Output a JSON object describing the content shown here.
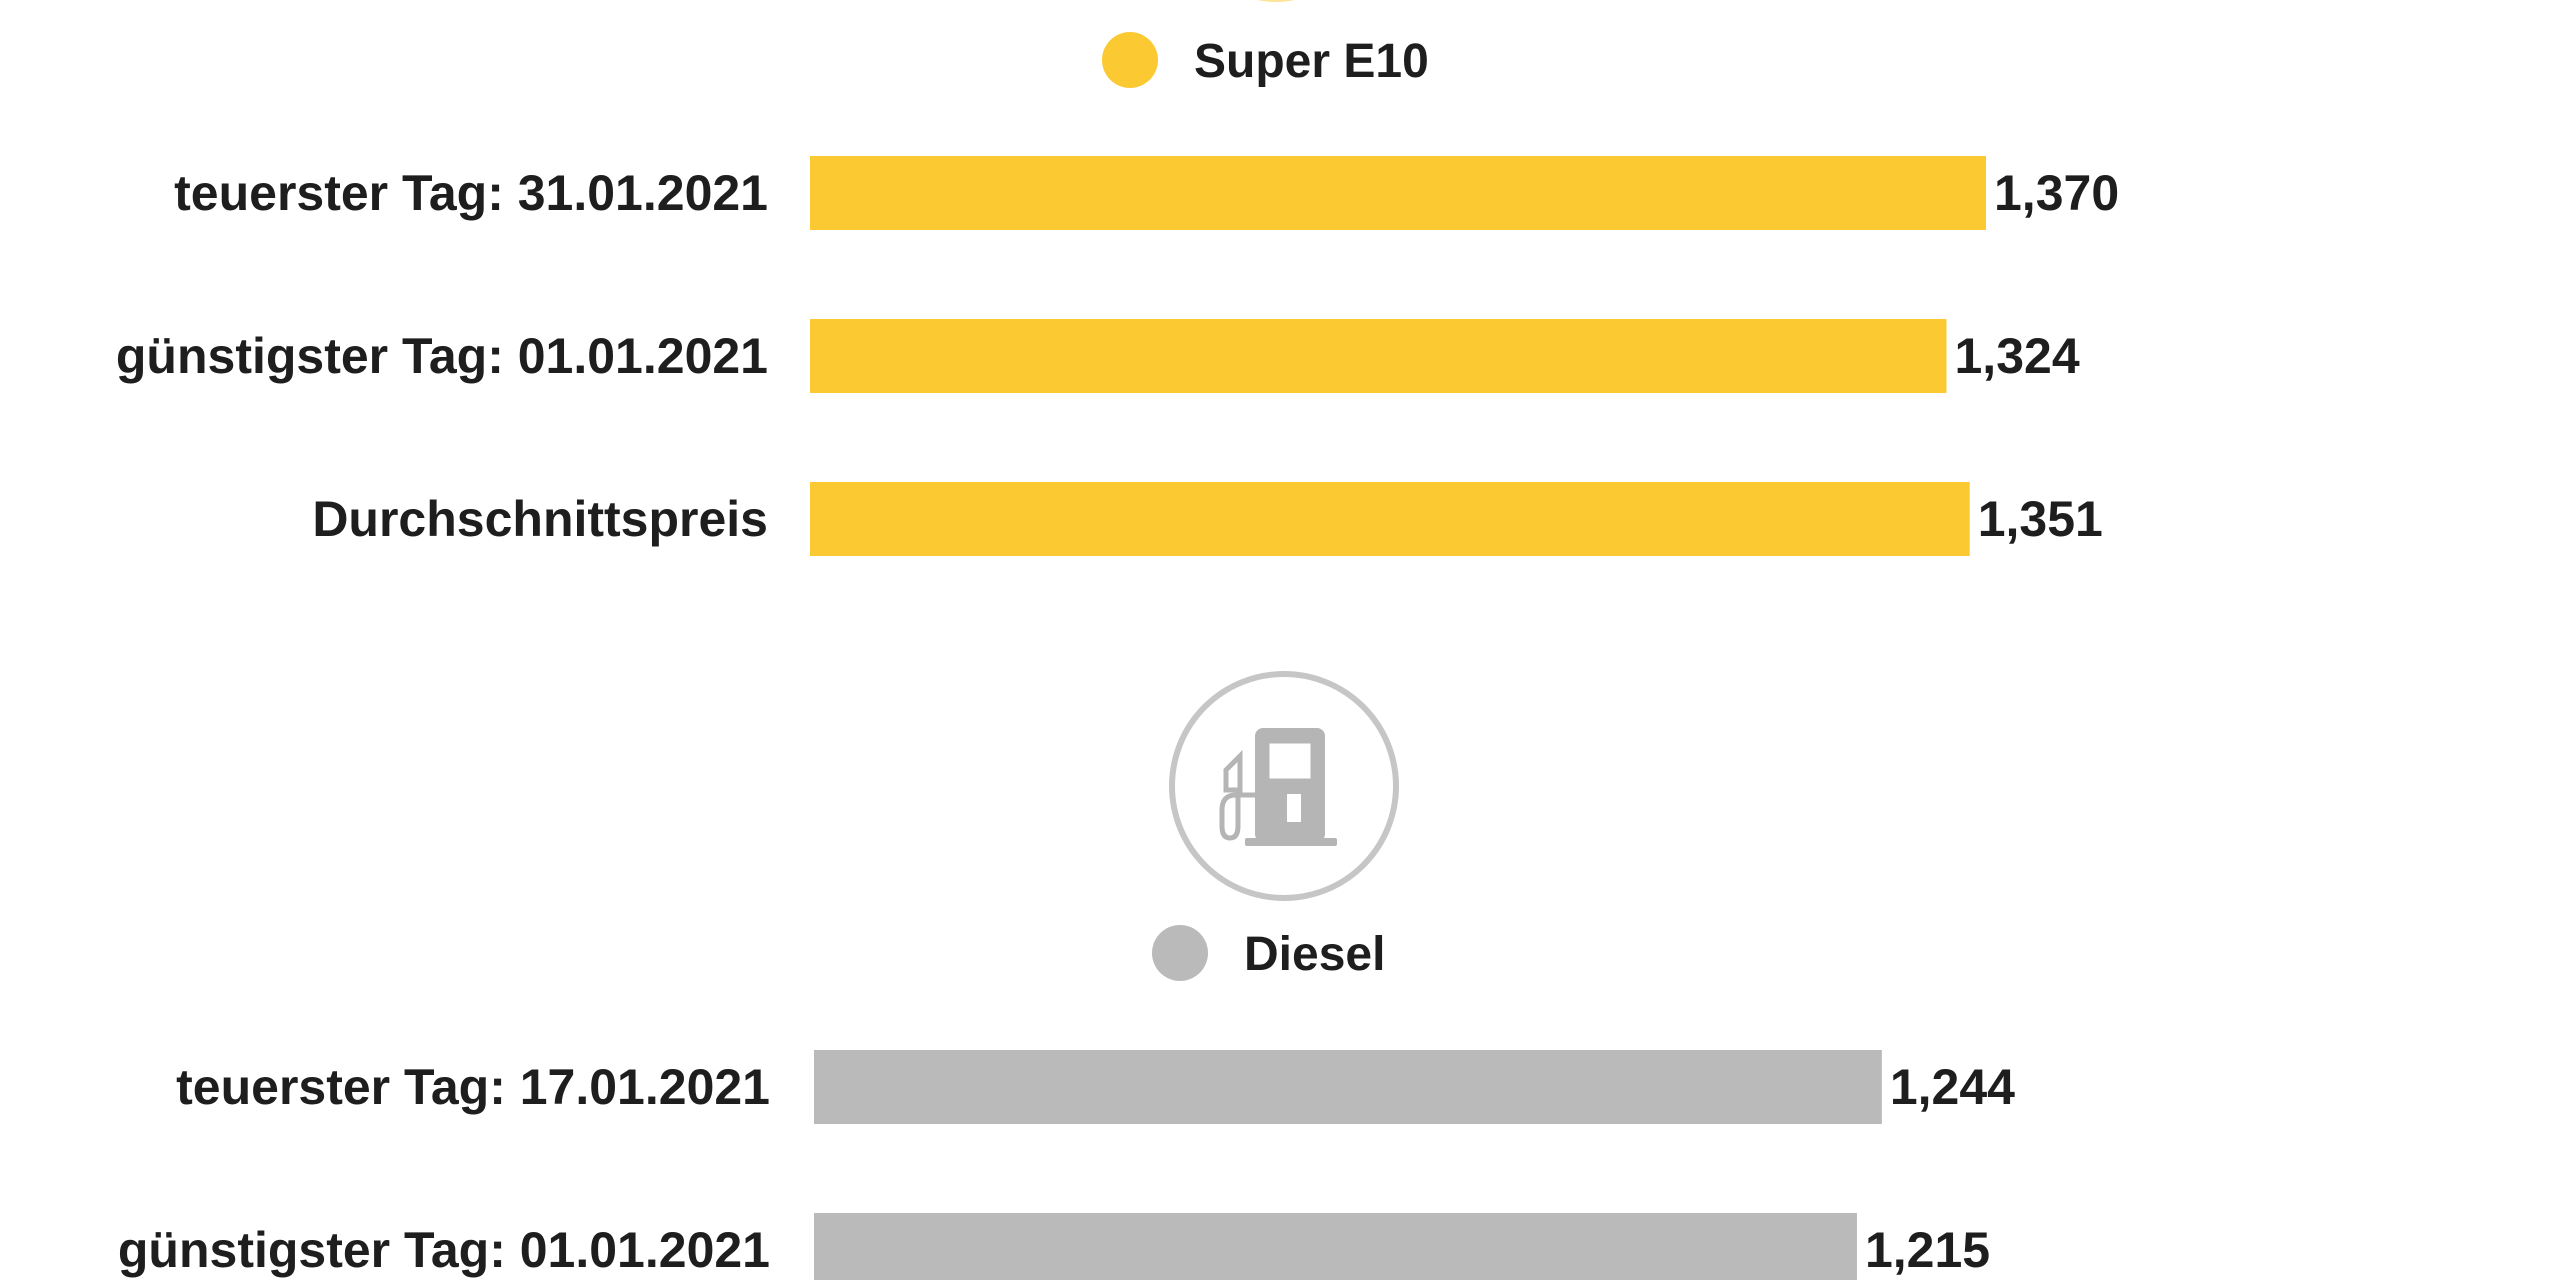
{
  "chart_data": [
    {
      "type": "bar",
      "orientation": "horizontal",
      "series_name": "Super E10",
      "color": "#fbc932",
      "categories": [
        "teuerster Tag: 31.01.2021",
        "günstigster Tag: 01.01.2021",
        "Durchschnittspreis"
      ],
      "values": [
        1.37,
        1.324,
        1.351
      ],
      "value_labels": [
        "1,370",
        "1,324",
        "1,351"
      ],
      "icon": "fuel-pump-icon"
    },
    {
      "type": "bar",
      "orientation": "horizontal",
      "series_name": "Diesel",
      "color": "#bababa",
      "icon_color": "#b5b5b5",
      "categories": [
        "teuerster Tag: 17.01.2021",
        "günstigster Tag: 01.01.2021"
      ],
      "values": [
        1.244,
        1.215
      ],
      "value_labels": [
        "1,244",
        "1,215"
      ],
      "icon": "fuel-pump-icon"
    }
  ]
}
